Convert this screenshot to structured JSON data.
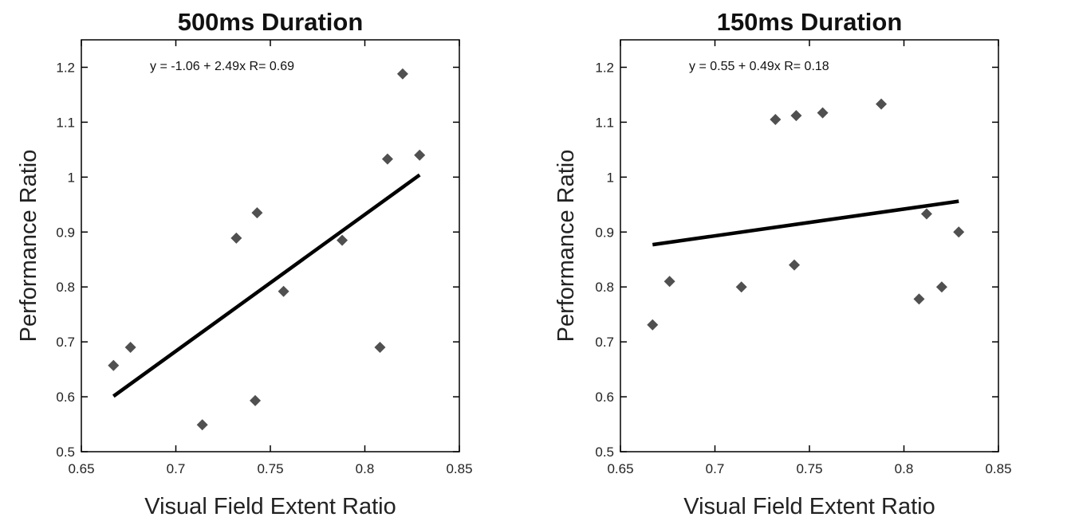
{
  "chart_data": [
    {
      "type": "scatter",
      "title": "500ms Duration",
      "xlabel": "Visual Field Extent Ratio",
      "ylabel": "Performance Ratio",
      "xlim": [
        0.65,
        0.85
      ],
      "ylim": [
        0.5,
        1.25
      ],
      "xticks": [
        "0.65",
        "0.7",
        "0.75",
        "0.8",
        "0.85"
      ],
      "yticks": [
        "0.5",
        "0.6",
        "0.7",
        "0.8",
        "0.9",
        "1",
        "1.1",
        "1.2"
      ],
      "annotation": "y = -1.06 + 2.49x   R= 0.69",
      "points": [
        {
          "x": 0.667,
          "y": 0.657
        },
        {
          "x": 0.676,
          "y": 0.69
        },
        {
          "x": 0.714,
          "y": 0.549
        },
        {
          "x": 0.732,
          "y": 0.889
        },
        {
          "x": 0.742,
          "y": 0.593
        },
        {
          "x": 0.743,
          "y": 0.935
        },
        {
          "x": 0.757,
          "y": 0.792
        },
        {
          "x": 0.788,
          "y": 0.885
        },
        {
          "x": 0.808,
          "y": 0.69
        },
        {
          "x": 0.812,
          "y": 1.033
        },
        {
          "x": 0.82,
          "y": 1.188
        },
        {
          "x": 0.829,
          "y": 1.04
        }
      ],
      "fit_line": {
        "x": [
          0.667,
          0.829
        ],
        "y": [
          0.601,
          1.004
        ]
      },
      "grid": false
    },
    {
      "type": "scatter",
      "title": "150ms Duration",
      "xlabel": "Visual Field Extent Ratio",
      "ylabel": "Performance Ratio",
      "xlim": [
        0.65,
        0.85
      ],
      "ylim": [
        0.5,
        1.25
      ],
      "xticks": [
        "0.65",
        "0.7",
        "0.75",
        "0.8",
        "0.85"
      ],
      "yticks": [
        "0.5",
        "0.6",
        "0.7",
        "0.8",
        "0.9",
        "1",
        "1.1",
        "1.2"
      ],
      "annotation": "y = 0.55 + 0.49x   R= 0.18",
      "points": [
        {
          "x": 0.667,
          "y": 0.731
        },
        {
          "x": 0.676,
          "y": 0.81
        },
        {
          "x": 0.714,
          "y": 0.8
        },
        {
          "x": 0.732,
          "y": 1.105
        },
        {
          "x": 0.742,
          "y": 0.84
        },
        {
          "x": 0.743,
          "y": 1.112
        },
        {
          "x": 0.757,
          "y": 1.117
        },
        {
          "x": 0.788,
          "y": 1.133
        },
        {
          "x": 0.808,
          "y": 0.778
        },
        {
          "x": 0.812,
          "y": 0.933
        },
        {
          "x": 0.82,
          "y": 0.8
        },
        {
          "x": 0.829,
          "y": 0.9
        }
      ],
      "fit_line": {
        "x": [
          0.667,
          0.829
        ],
        "y": [
          0.877,
          0.956
        ]
      },
      "grid": false
    }
  ],
  "colors": {
    "marker": "#505050",
    "line": "#000000",
    "axis": "#000000"
  }
}
